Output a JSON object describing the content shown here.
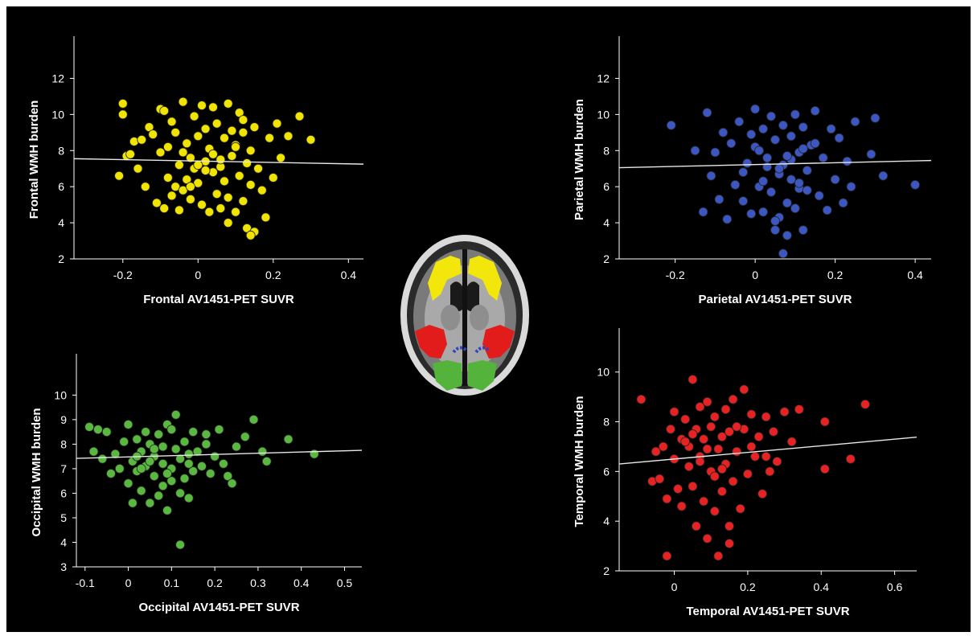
{
  "chart_data": [
    {
      "type": "scatter",
      "xlabel": "Frontal AV1451-PET SUVR",
      "ylabel": "Frontal WMH burden",
      "xlim": [
        -0.33,
        0.44
      ],
      "ylim": [
        2,
        13
      ],
      "xticks": [
        "-0.2",
        "0",
        "0.2",
        "0.4"
      ],
      "yticks": [
        "2",
        "4",
        "6",
        "8",
        "10",
        "12"
      ],
      "color": "#f0e400",
      "trendline": {
        "x": [
          -0.33,
          0.44
        ],
        "y": [
          7.55,
          7.25
        ]
      },
      "x": [
        -0.21,
        -0.2,
        -0.2,
        -0.19,
        -0.18,
        -0.17,
        -0.16,
        -0.15,
        -0.14,
        -0.13,
        -0.12,
        -0.11,
        -0.1,
        -0.1,
        -0.09,
        -0.09,
        -0.08,
        -0.08,
        -0.07,
        -0.07,
        -0.06,
        -0.06,
        -0.05,
        -0.05,
        -0.04,
        -0.04,
        -0.03,
        -0.03,
        -0.02,
        -0.02,
        -0.01,
        -0.01,
        0.0,
        0.0,
        0.01,
        0.01,
        0.02,
        0.02,
        0.03,
        0.03,
        0.04,
        0.04,
        0.05,
        0.05,
        0.06,
        0.06,
        0.07,
        0.07,
        0.08,
        0.08,
        0.09,
        0.09,
        0.1,
        0.1,
        0.11,
        0.11,
        0.12,
        0.12,
        0.13,
        0.13,
        0.14,
        0.14,
        0.15,
        0.15,
        0.16,
        0.17,
        0.18,
        0.19,
        0.2,
        0.21,
        0.22,
        0.24,
        0.27,
        0.3,
        -0.04,
        0.02,
        0.06,
        0.1,
        0.14,
        -0.02,
        0.04,
        0.08,
        0.12,
        0.0
      ],
      "y": [
        6.6,
        10.6,
        10.0,
        7.7,
        7.8,
        8.5,
        7.0,
        8.6,
        6.0,
        9.3,
        8.9,
        5.1,
        7.9,
        10.3,
        4.8,
        10.2,
        6.5,
        8.2,
        5.5,
        9.6,
        9.0,
        6.0,
        7.2,
        4.7,
        10.7,
        5.8,
        8.4,
        6.4,
        7.6,
        5.3,
        9.9,
        7.0,
        6.2,
        8.8,
        10.5,
        5.0,
        7.4,
        9.2,
        4.6,
        8.1,
        6.8,
        10.4,
        5.6,
        9.5,
        7.1,
        4.8,
        8.7,
        6.3,
        10.6,
        5.4,
        9.1,
        7.7,
        4.6,
        8.3,
        6.6,
        10.1,
        5.2,
        9.7,
        7.3,
        3.7,
        8.0,
        6.1,
        3.5,
        9.3,
        7.0,
        5.8,
        4.3,
        8.7,
        6.5,
        9.5,
        7.6,
        8.8,
        9.9,
        8.6,
        7.9,
        6.9,
        7.5,
        8.2,
        3.3,
        6.0,
        7.8,
        4.0,
        9.0,
        7.2
      ]
    },
    {
      "type": "scatter",
      "xlabel": "Parietal AV1451-PET SUVR",
      "ylabel": "Parietal WMH burden",
      "xlim": [
        -0.34,
        0.44
      ],
      "ylim": [
        2,
        13
      ],
      "xticks": [
        "-0.2",
        "0",
        "0.2",
        "0.4"
      ],
      "yticks": [
        "2",
        "4",
        "6",
        "8",
        "10",
        "12"
      ],
      "color": "#3d57c2",
      "trendline": {
        "x": [
          -0.34,
          0.44
        ],
        "y": [
          7.05,
          7.45
        ]
      },
      "x": [
        -0.21,
        -0.15,
        -0.13,
        -0.12,
        -0.11,
        -0.1,
        -0.09,
        -0.08,
        -0.07,
        -0.06,
        -0.05,
        -0.04,
        -0.03,
        -0.02,
        -0.01,
        0.0,
        0.0,
        0.01,
        0.02,
        0.02,
        0.03,
        0.04,
        0.04,
        0.05,
        0.05,
        0.06,
        0.06,
        0.07,
        0.07,
        0.08,
        0.08,
        0.09,
        0.09,
        0.1,
        0.1,
        0.11,
        0.11,
        0.12,
        0.12,
        0.13,
        0.14,
        0.15,
        0.16,
        0.17,
        0.18,
        0.19,
        0.2,
        0.21,
        0.22,
        0.23,
        0.24,
        0.25,
        0.29,
        0.3,
        0.32,
        0.4,
        -0.01,
        0.03,
        0.07,
        0.11,
        0.15,
        0.05,
        0.09,
        0.13,
        -0.03,
        0.01,
        0.06,
        0.08,
        0.12,
        0.02
      ],
      "y": [
        9.4,
        8.0,
        4.6,
        10.1,
        6.6,
        7.9,
        5.3,
        9.0,
        4.2,
        8.4,
        6.1,
        9.6,
        5.2,
        7.3,
        4.5,
        10.3,
        8.2,
        6.0,
        9.2,
        4.6,
        7.6,
        5.7,
        9.9,
        3.6,
        8.6,
        6.7,
        4.3,
        9.4,
        7.2,
        5.1,
        3.3,
        8.8,
        6.4,
        10.0,
        4.8,
        7.9,
        5.9,
        9.3,
        3.6,
        6.9,
        8.3,
        10.2,
        5.5,
        7.6,
        4.7,
        9.2,
        6.4,
        8.7,
        5.1,
        7.4,
        6.0,
        9.6,
        7.8,
        9.8,
        6.6,
        6.1,
        8.9,
        7.1,
        2.3,
        6.2,
        8.4,
        4.1,
        7.5,
        5.8,
        6.8,
        8.0,
        7.0,
        7.7,
        8.1,
        6.3
      ]
    },
    {
      "type": "scatter",
      "xlabel": "Occipital AV1451-PET SUVR",
      "ylabel": "Occipital WMH burden",
      "xlim": [
        -0.12,
        0.54
      ],
      "ylim": [
        3,
        10.7
      ],
      "xticks": [
        "-0.1",
        "0",
        "0.1",
        "0.2",
        "0.3",
        "0.4",
        "0.5"
      ],
      "yticks": [
        "3",
        "4",
        "5",
        "6",
        "7",
        "8",
        "9",
        "10"
      ],
      "color": "#5ab840",
      "trendline": {
        "x": [
          -0.12,
          0.54
        ],
        "y": [
          7.42,
          7.75
        ]
      },
      "x": [
        -0.09,
        -0.08,
        -0.07,
        -0.06,
        -0.05,
        -0.04,
        -0.03,
        -0.02,
        -0.01,
        0.0,
        0.0,
        0.01,
        0.01,
        0.02,
        0.02,
        0.03,
        0.03,
        0.04,
        0.04,
        0.05,
        0.05,
        0.06,
        0.06,
        0.07,
        0.07,
        0.08,
        0.08,
        0.09,
        0.09,
        0.1,
        0.1,
        0.11,
        0.11,
        0.12,
        0.12,
        0.13,
        0.13,
        0.14,
        0.14,
        0.15,
        0.15,
        0.16,
        0.17,
        0.18,
        0.19,
        0.2,
        0.21,
        0.22,
        0.23,
        0.24,
        0.25,
        0.27,
        0.29,
        0.31,
        0.32,
        0.37,
        0.43,
        0.12,
        0.08,
        0.05,
        0.03,
        0.1,
        0.06,
        0.09,
        0.14,
        0.18,
        0.02
      ],
      "y": [
        8.7,
        7.7,
        8.6,
        7.4,
        8.5,
        6.8,
        7.6,
        7.0,
        8.1,
        8.8,
        6.4,
        7.3,
        5.6,
        8.2,
        6.9,
        7.7,
        6.1,
        8.5,
        7.1,
        5.6,
        8.0,
        6.7,
        7.5,
        5.9,
        8.4,
        6.3,
        7.2,
        5.3,
        8.8,
        7.0,
        6.5,
        7.8,
        9.2,
        6.0,
        7.4,
        8.1,
        6.6,
        7.6,
        5.8,
        8.5,
        6.9,
        7.7,
        7.1,
        8.0,
        6.8,
        7.5,
        8.6,
        7.2,
        6.7,
        6.4,
        7.9,
        8.3,
        9.0,
        7.7,
        7.3,
        8.2,
        7.6,
        3.9,
        7.9,
        7.3,
        7.0,
        8.6,
        7.8,
        6.8,
        7.2,
        8.4,
        7.5
      ]
    },
    {
      "type": "scatter",
      "xlabel": "Temporal AV1451-PET SUVR",
      "ylabel": "Temporal WMH burden",
      "xlim": [
        -0.15,
        0.66
      ],
      "ylim": [
        2,
        10.8
      ],
      "xticks": [
        "0",
        "0.2",
        "0.4",
        "0.6"
      ],
      "yticks": [
        "2",
        "4",
        "6",
        "8",
        "10"
      ],
      "color": "#e62222",
      "trendline": {
        "x": [
          -0.15,
          0.66
        ],
        "y": [
          6.3,
          7.38
        ]
      },
      "x": [
        -0.09,
        -0.06,
        -0.05,
        -0.04,
        -0.03,
        -0.02,
        -0.01,
        0.0,
        0.0,
        0.01,
        0.02,
        0.02,
        0.03,
        0.04,
        0.04,
        0.05,
        0.05,
        0.06,
        0.06,
        0.07,
        0.07,
        0.08,
        0.08,
        0.09,
        0.09,
        0.1,
        0.1,
        0.11,
        0.11,
        0.12,
        0.12,
        0.13,
        0.13,
        0.14,
        0.14,
        0.15,
        0.15,
        0.16,
        0.16,
        0.17,
        0.18,
        0.19,
        0.2,
        0.21,
        0.22,
        0.23,
        0.24,
        0.25,
        0.26,
        0.27,
        0.28,
        0.3,
        0.32,
        0.34,
        0.41,
        0.41,
        0.48,
        0.52,
        0.05,
        0.09,
        0.13,
        0.17,
        0.21,
        0.11,
        0.15,
        0.19,
        0.07,
        0.03,
        0.25,
        -0.02
      ],
      "y": [
        8.9,
        5.6,
        6.8,
        5.7,
        7.0,
        4.9,
        7.7,
        6.5,
        8.4,
        5.3,
        7.3,
        4.6,
        8.1,
        6.2,
        7.0,
        9.7,
        5.4,
        7.7,
        3.8,
        8.6,
        6.6,
        4.8,
        7.3,
        3.3,
        8.8,
        6.0,
        7.8,
        4.4,
        8.2,
        6.9,
        2.6,
        7.4,
        5.2,
        8.5,
        6.3,
        3.8,
        7.6,
        5.6,
        8.9,
        6.8,
        4.5,
        7.7,
        5.9,
        8.3,
        6.6,
        7.4,
        5.1,
        8.2,
        6.0,
        7.6,
        6.4,
        8.4,
        7.2,
        8.5,
        8.0,
        6.1,
        6.5,
        8.7,
        7.5,
        6.9,
        6.1,
        7.8,
        7.0,
        5.8,
        3.1,
        9.3,
        6.4,
        7.2,
        6.6,
        2.6
      ]
    }
  ]
}
